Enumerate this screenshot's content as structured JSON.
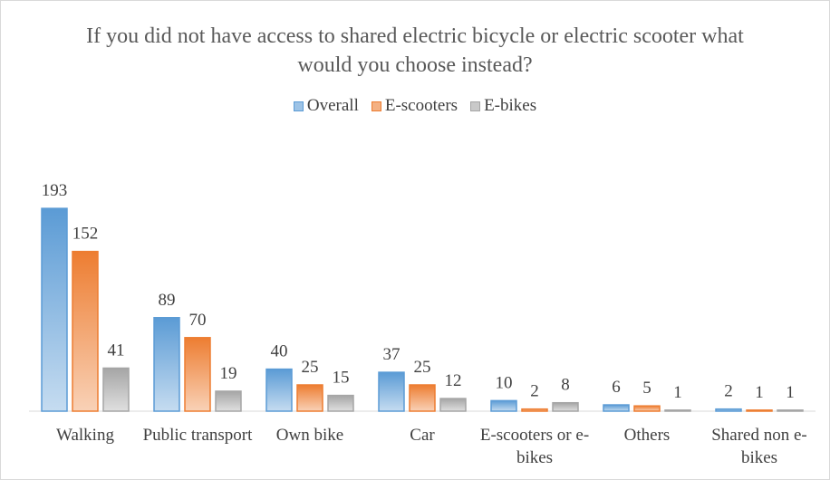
{
  "chart_data": {
    "type": "bar",
    "title": "If you did not have access to shared electric bicycle or electric scooter what would you choose instead?",
    "categories": [
      "Walking",
      "Public transport",
      "Own bike",
      "Car",
      "E-scooters or e-bikes",
      "Others",
      "Shared non e-bikes"
    ],
    "series": [
      {
        "name": "Overall",
        "color": "#5b9bd5",
        "values": [
          193,
          89,
          40,
          37,
          10,
          6,
          2
        ]
      },
      {
        "name": "E-scooters",
        "color": "#ed7d31",
        "values": [
          152,
          70,
          25,
          25,
          2,
          5,
          1
        ]
      },
      {
        "name": "E-bikes",
        "color": "#a5a5a5",
        "values": [
          41,
          19,
          15,
          12,
          8,
          1,
          1
        ]
      }
    ],
    "ylim": [
      0,
      200
    ],
    "legend": "top"
  }
}
